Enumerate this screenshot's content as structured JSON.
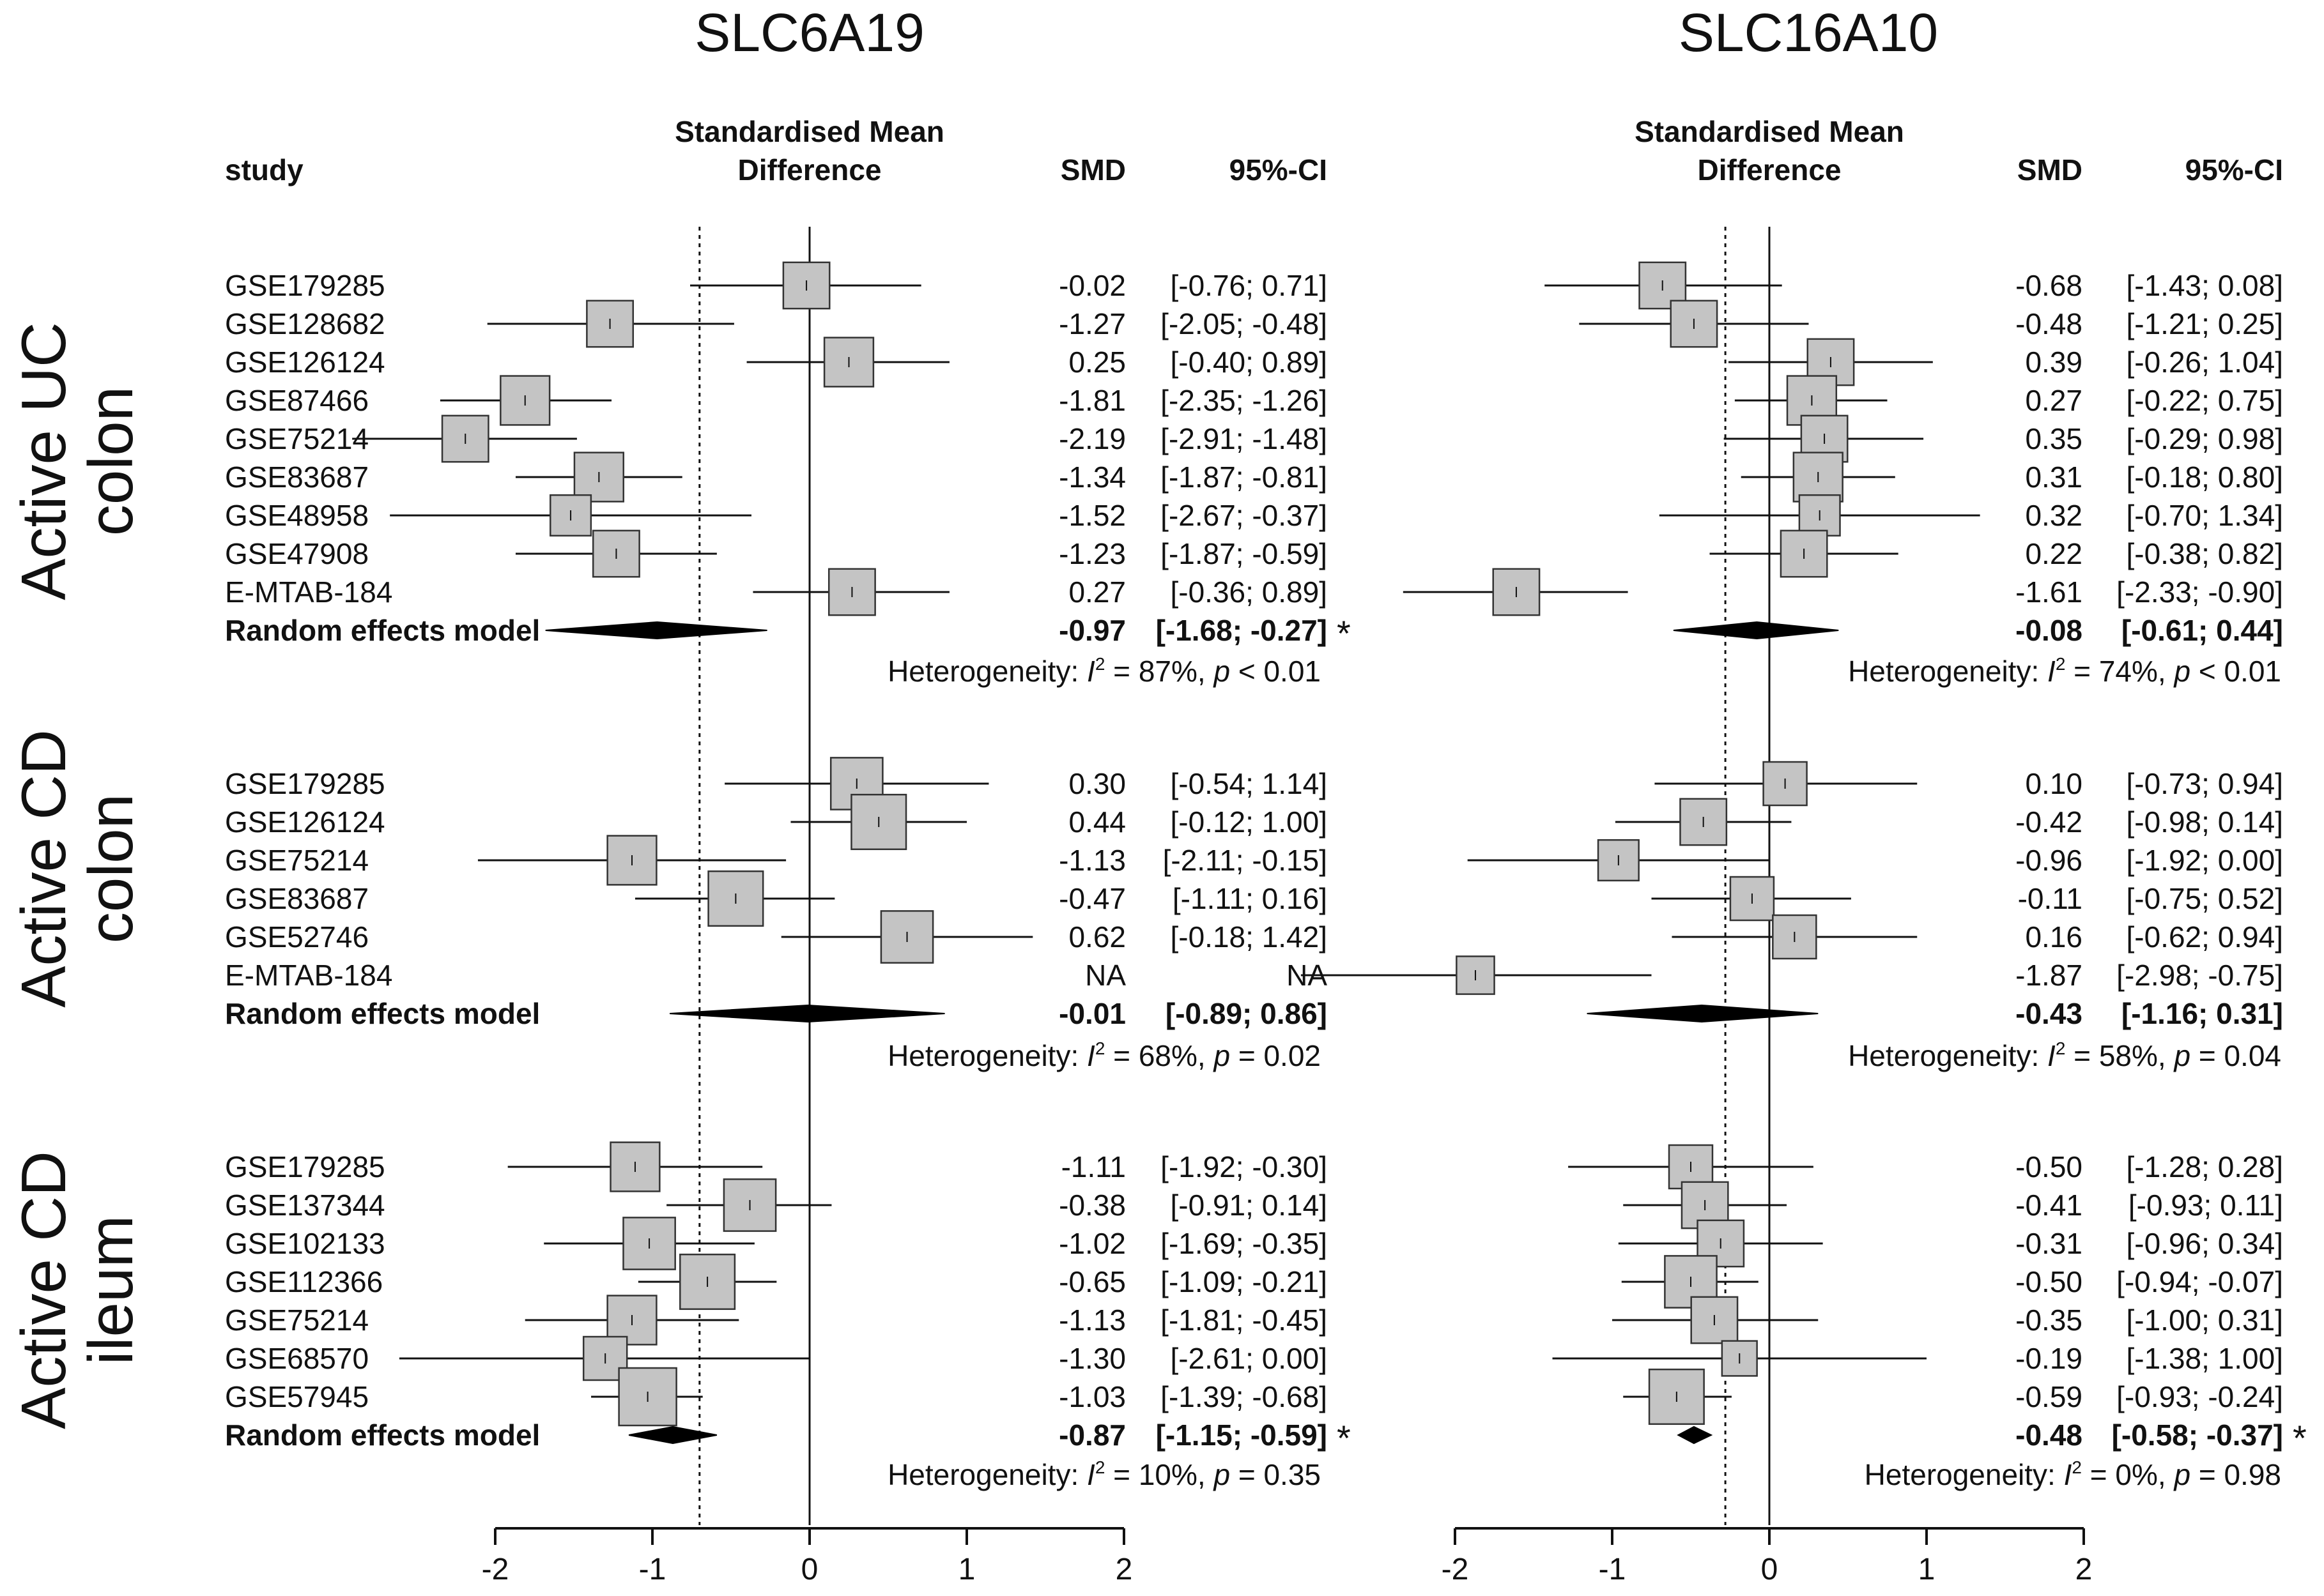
{
  "chart_data": {
    "type": "forest",
    "xlim": [
      -2,
      2
    ],
    "xticks": [
      "-2",
      "-1",
      "0",
      "1",
      "2"
    ],
    "headers": {
      "study": "study",
      "effect_line1": "Standardised Mean",
      "effect_line2": "Difference",
      "smd": "SMD",
      "ci": "95%-CI"
    },
    "groups": [
      {
        "label_line1": "Active UC",
        "label_line2": "colon"
      },
      {
        "label_line1": "Active CD",
        "label_line2": "colon"
      },
      {
        "label_line1": "Active CD",
        "label_line2": "ileum"
      }
    ],
    "panels": [
      {
        "title": "SLC6A19",
        "pooled_line": -0.7,
        "groups": [
          {
            "studies": [
              {
                "name": "GSE179285",
                "smd": -0.02,
                "lo": -0.76,
                "hi": 0.71,
                "weight": 11,
                "smd_text": "-0.02",
                "ci_text": "[-0.76;  0.71]"
              },
              {
                "name": "GSE128682",
                "smd": -1.27,
                "lo": -2.05,
                "hi": -0.48,
                "weight": 11,
                "smd_text": "-1.27",
                "ci_text": "[-2.05; -0.48]"
              },
              {
                "name": "GSE126124",
                "smd": 0.25,
                "lo": -0.4,
                "hi": 0.89,
                "weight": 12,
                "smd_text": "0.25",
                "ci_text": "[-0.40;  0.89]"
              },
              {
                "name": "GSE87466",
                "smd": -1.81,
                "lo": -2.35,
                "hi": -1.26,
                "weight": 12,
                "smd_text": "-1.81",
                "ci_text": "[-2.35; -1.26]"
              },
              {
                "name": "GSE75214",
                "smd": -2.19,
                "lo": -2.91,
                "hi": -1.48,
                "weight": 11,
                "smd_text": "-2.19",
                "ci_text": "[-2.91; -1.48]"
              },
              {
                "name": "GSE83687",
                "smd": -1.34,
                "lo": -1.87,
                "hi": -0.81,
                "weight": 12,
                "smd_text": "-1.34",
                "ci_text": "[-1.87; -0.81]"
              },
              {
                "name": "GSE48958",
                "smd": -1.52,
                "lo": -2.67,
                "hi": -0.37,
                "weight": 9,
                "smd_text": "-1.52",
                "ci_text": "[-2.67; -0.37]"
              },
              {
                "name": "GSE47908",
                "smd": -1.23,
                "lo": -1.87,
                "hi": -0.59,
                "weight": 11,
                "smd_text": "-1.23",
                "ci_text": "[-1.87; -0.59]"
              },
              {
                "name": "E-MTAB-184",
                "smd": 0.27,
                "lo": -0.36,
                "hi": 0.89,
                "weight": 11,
                "smd_text": "0.27",
                "ci_text": "[-0.36;  0.89]"
              }
            ],
            "model": {
              "label": "Random effects model",
              "smd": -0.97,
              "lo": -1.68,
              "hi": -0.27,
              "smd_text": "-0.97",
              "ci_text": "[-1.68; -0.27]",
              "star": "*"
            },
            "heterogeneity": {
              "prefix": "Heterogeneity: ",
              "i2": "= 87%,",
              "p": "< 0.01"
            }
          },
          {
            "studies": [
              {
                "name": "GSE179285",
                "smd": 0.3,
                "lo": -0.54,
                "hi": 1.14,
                "weight": 13,
                "smd_text": "0.30",
                "ci_text": "[-0.54;  1.14]"
              },
              {
                "name": "GSE126124",
                "smd": 0.44,
                "lo": -0.12,
                "hi": 1.0,
                "weight": 14,
                "smd_text": "0.44",
                "ci_text": "[-0.12;  1.00]"
              },
              {
                "name": "GSE75214",
                "smd": -1.13,
                "lo": -2.11,
                "hi": -0.15,
                "weight": 12,
                "smd_text": "-1.13",
                "ci_text": "[-2.11; -0.15]"
              },
              {
                "name": "GSE83687",
                "smd": -0.47,
                "lo": -1.11,
                "hi": 0.16,
                "weight": 14,
                "smd_text": "-0.47",
                "ci_text": "[-1.11;  0.16]"
              },
              {
                "name": "GSE52746",
                "smd": 0.62,
                "lo": -0.18,
                "hi": 1.42,
                "weight": 13,
                "smd_text": "0.62",
                "ci_text": "[-0.18;  1.42]"
              },
              {
                "name": "E-MTAB-184",
                "smd": null,
                "lo": null,
                "hi": null,
                "weight": 0,
                "smd_text": "NA",
                "ci_text": "NA"
              }
            ],
            "model": {
              "label": "Random effects model",
              "smd": -0.01,
              "lo": -0.89,
              "hi": 0.86,
              "smd_text": "-0.01",
              "ci_text": "[-0.89;  0.86]",
              "star": ""
            },
            "heterogeneity": {
              "prefix": "Heterogeneity: ",
              "i2": "= 68%,",
              "p": "= 0.02"
            }
          },
          {
            "studies": [
              {
                "name": "GSE179285",
                "smd": -1.11,
                "lo": -1.92,
                "hi": -0.3,
                "weight": 12,
                "smd_text": "-1.11",
                "ci_text": "[-1.92; -0.30]"
              },
              {
                "name": "GSE137344",
                "smd": -0.38,
                "lo": -0.91,
                "hi": 0.14,
                "weight": 13,
                "smd_text": "-0.38",
                "ci_text": "[-0.91;  0.14]"
              },
              {
                "name": "GSE102133",
                "smd": -1.02,
                "lo": -1.69,
                "hi": -0.35,
                "weight": 13,
                "smd_text": "-1.02",
                "ci_text": "[-1.69; -0.35]"
              },
              {
                "name": "GSE112366",
                "smd": -0.65,
                "lo": -1.09,
                "hi": -0.21,
                "weight": 14,
                "smd_text": "-0.65",
                "ci_text": "[-1.09; -0.21]"
              },
              {
                "name": "GSE75214",
                "smd": -1.13,
                "lo": -1.81,
                "hi": -0.45,
                "weight": 12,
                "smd_text": "-1.13",
                "ci_text": "[-1.81; -0.45]"
              },
              {
                "name": "GSE68570",
                "smd": -1.3,
                "lo": -2.61,
                "hi": 0.0,
                "weight": 10,
                "smd_text": "-1.30",
                "ci_text": "[-2.61;  0.00]"
              },
              {
                "name": "GSE57945",
                "smd": -1.03,
                "lo": -1.39,
                "hi": -0.68,
                "weight": 15,
                "smd_text": "-1.03",
                "ci_text": "[-1.39; -0.68]"
              }
            ],
            "model": {
              "label": "Random effects model",
              "smd": -0.87,
              "lo": -1.15,
              "hi": -0.59,
              "smd_text": "-0.87",
              "ci_text": "[-1.15; -0.59]",
              "star": "*"
            },
            "heterogeneity": {
              "prefix": "Heterogeneity: ",
              "i2": "= 10%,",
              "p": "= 0.35"
            }
          }
        ]
      },
      {
        "title": "SLC16A10",
        "pooled_line": -0.28,
        "groups": [
          {
            "studies": [
              {
                "name": "GSE179285",
                "smd": -0.68,
                "lo": -1.43,
                "hi": 0.08,
                "weight": 11,
                "smd_text": "-0.68",
                "ci_text": "[-1.43;  0.08]"
              },
              {
                "name": "GSE128682",
                "smd": -0.48,
                "lo": -1.21,
                "hi": 0.25,
                "weight": 11,
                "smd_text": "-0.48",
                "ci_text": "[-1.21;  0.25]"
              },
              {
                "name": "GSE126124",
                "smd": 0.39,
                "lo": -0.26,
                "hi": 1.04,
                "weight": 11,
                "smd_text": "0.39",
                "ci_text": "[-0.26;  1.04]"
              },
              {
                "name": "GSE87466",
                "smd": 0.27,
                "lo": -0.22,
                "hi": 0.75,
                "weight": 12,
                "smd_text": "0.27",
                "ci_text": "[-0.22;  0.75]"
              },
              {
                "name": "GSE75214",
                "smd": 0.35,
                "lo": -0.29,
                "hi": 0.98,
                "weight": 11,
                "smd_text": "0.35",
                "ci_text": "[-0.29;  0.98]"
              },
              {
                "name": "GSE83687",
                "smd": 0.31,
                "lo": -0.18,
                "hi": 0.8,
                "weight": 12,
                "smd_text": "0.31",
                "ci_text": "[-0.18;  0.80]"
              },
              {
                "name": "GSE48958",
                "smd": 0.32,
                "lo": -0.7,
                "hi": 1.34,
                "weight": 9,
                "smd_text": "0.32",
                "ci_text": "[-0.70;  1.34]"
              },
              {
                "name": "GSE47908",
                "smd": 0.22,
                "lo": -0.38,
                "hi": 0.82,
                "weight": 11,
                "smd_text": "0.22",
                "ci_text": "[-0.38;  0.82]"
              },
              {
                "name": "E-MTAB-184",
                "smd": -1.61,
                "lo": -2.33,
                "hi": -0.9,
                "weight": 11,
                "smd_text": "-1.61",
                "ci_text": "[-2.33; -0.90]"
              }
            ],
            "model": {
              "label": "",
              "smd": -0.08,
              "lo": -0.61,
              "hi": 0.44,
              "smd_text": "-0.08",
              "ci_text": "[-0.61;  0.44]",
              "star": ""
            },
            "heterogeneity": {
              "prefix": "Heterogeneity: ",
              "i2": "= 74%,",
              "p": "< 0.01"
            }
          },
          {
            "studies": [
              {
                "name": "",
                "smd": 0.1,
                "lo": -0.73,
                "hi": 0.94,
                "weight": 10,
                "smd_text": "0.10",
                "ci_text": "[-0.73;  0.94]"
              },
              {
                "name": "",
                "smd": -0.42,
                "lo": -0.98,
                "hi": 0.14,
                "weight": 11,
                "smd_text": "-0.42",
                "ci_text": "[-0.98;  0.14]"
              },
              {
                "name": "",
                "smd": -0.96,
                "lo": -1.92,
                "hi": 0.0,
                "weight": 9,
                "smd_text": "-0.96",
                "ci_text": "[-1.92;  0.00]"
              },
              {
                "name": "",
                "smd": -0.11,
                "lo": -0.75,
                "hi": 0.52,
                "weight": 10,
                "smd_text": "-0.11",
                "ci_text": "[-0.75;  0.52]"
              },
              {
                "name": "",
                "smd": 0.16,
                "lo": -0.62,
                "hi": 0.94,
                "weight": 10,
                "smd_text": "0.16",
                "ci_text": "[-0.62;  0.94]"
              },
              {
                "name": "",
                "smd": -1.87,
                "lo": -2.98,
                "hi": -0.75,
                "weight": 8,
                "smd_text": "-1.87",
                "ci_text": "[-2.98; -0.75]"
              }
            ],
            "model": {
              "label": "",
              "smd": -0.43,
              "lo": -1.16,
              "hi": 0.31,
              "smd_text": "-0.43",
              "ci_text": "[-1.16;  0.31]",
              "star": ""
            },
            "heterogeneity": {
              "prefix": "Heterogeneity: ",
              "i2": "= 58%,",
              "p": "= 0.04"
            }
          },
          {
            "studies": [
              {
                "name": "",
                "smd": -0.5,
                "lo": -1.28,
                "hi": 0.28,
                "weight": 10,
                "smd_text": "-0.50",
                "ci_text": "[-1.28;  0.28]"
              },
              {
                "name": "",
                "smd": -0.41,
                "lo": -0.93,
                "hi": 0.11,
                "weight": 11,
                "smd_text": "-0.41",
                "ci_text": "[-0.93;  0.11]"
              },
              {
                "name": "",
                "smd": -0.31,
                "lo": -0.96,
                "hi": 0.34,
                "weight": 11,
                "smd_text": "-0.31",
                "ci_text": "[-0.96;  0.34]"
              },
              {
                "name": "",
                "smd": -0.5,
                "lo": -0.94,
                "hi": -0.07,
                "weight": 13,
                "smd_text": "-0.50",
                "ci_text": "[-0.94; -0.07]"
              },
              {
                "name": "",
                "smd": -0.35,
                "lo": -1.0,
                "hi": 0.31,
                "weight": 11,
                "smd_text": "-0.35",
                "ci_text": "[-1.00;  0.31]"
              },
              {
                "name": "",
                "smd": -0.19,
                "lo": -1.38,
                "hi": 1.0,
                "weight": 7,
                "smd_text": "-0.19",
                "ci_text": "[-1.38;  1.00]"
              },
              {
                "name": "",
                "smd": -0.59,
                "lo": -0.93,
                "hi": -0.24,
                "weight": 14,
                "smd_text": "-0.59",
                "ci_text": "[-0.93; -0.24]"
              }
            ],
            "model": {
              "label": "",
              "smd": -0.48,
              "lo": -0.58,
              "hi": -0.37,
              "smd_text": "-0.48",
              "ci_text": "[-0.58; -0.37]",
              "star": "*"
            },
            "heterogeneity": {
              "prefix": "Heterogeneity: ",
              "i2": "= 0%,",
              "p": "= 0.98"
            }
          }
        ]
      }
    ]
  }
}
